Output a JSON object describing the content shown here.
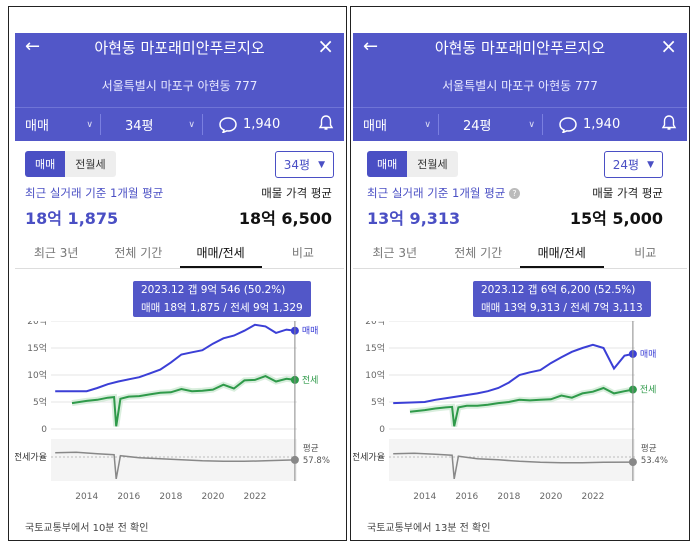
{
  "panels": [
    {
      "title": "아현동 마포래미안푸르지오",
      "address": "서울특별시 마포구 아현동 777",
      "trade_type": "매매",
      "size": "34평",
      "comment_count": "1,940",
      "segments": [
        "매매",
        "전월세"
      ],
      "size_select": "34평",
      "avg_label": "최근 실거래 기준 1개월 평균",
      "avg_value": "18억 1,875",
      "asking_label": "매물 가격 평균",
      "asking_value": "18억 6,500",
      "tabs": [
        "최근 3년",
        "전체 기간",
        "매매/전세",
        "비교"
      ],
      "tooltip_line1": "2023.12  갭 9억 546 (50.2%)",
      "tooltip_line2": "매매 18억 1,875 / 전세 9억 1,329",
      "footer": "국토교통부에서 10분 전 확인",
      "chart_data": {
        "type": "line",
        "x_ticks": [
          "2014",
          "2016",
          "2018",
          "2020",
          "2022"
        ],
        "y_ticks": [
          "20억",
          "15억",
          "10억",
          "5억",
          "0"
        ],
        "ratio_label": "전세가율",
        "ratio_avg_label": "평균",
        "ratio_avg_value": "57.8%",
        "series": [
          {
            "name": "매매",
            "color": "#3b3fd6",
            "x": [
              2012.5,
              2014.0,
              2014.5,
              2015.0,
              2015.5,
              2016.0,
              2016.5,
              2017.0,
              2017.5,
              2018.0,
              2018.5,
              2019.0,
              2019.5,
              2020.0,
              2020.5,
              2021.0,
              2021.5,
              2022.0,
              2022.5,
              2023.0,
              2023.5,
              2023.9
            ],
            "y": [
              7.0,
              7.0,
              7.6,
              8.3,
              8.8,
              9.2,
              9.6,
              10.3,
              11.0,
              12.3,
              13.8,
              14.2,
              14.6,
              15.8,
              16.8,
              17.3,
              18.2,
              19.3,
              19.0,
              17.8,
              18.4,
              18.2
            ]
          },
          {
            "name": "전세",
            "color": "#2f9a4a",
            "x": [
              2013.3,
              2014.0,
              2014.5,
              2015.0,
              2015.3,
              2015.4,
              2015.6,
              2016.0,
              2016.5,
              2017.0,
              2017.5,
              2018.0,
              2018.5,
              2019.0,
              2019.5,
              2020.0,
              2020.5,
              2021.0,
              2021.5,
              2022.0,
              2022.5,
              2023.0,
              2023.5,
              2023.9
            ],
            "y": [
              4.8,
              5.2,
              5.4,
              5.8,
              5.9,
              0.5,
              5.6,
              6.0,
              6.1,
              6.4,
              6.7,
              6.8,
              7.4,
              7.0,
              7.1,
              7.3,
              8.2,
              7.5,
              9.0,
              9.1,
              9.8,
              8.8,
              9.3,
              9.1
            ]
          },
          {
            "name": "전세가율",
            "color": "#888888",
            "x": [
              2012.5,
              2013.5,
              2014.5,
              2015.3,
              2015.4,
              2015.6,
              2016.5,
              2017.5,
              2018.5,
              2019.5,
              2020.5,
              2021.5,
              2022.5,
              2023.9
            ],
            "y": [
              72,
              73,
              70,
              68,
              20,
              66,
              62,
              60,
              58,
              56,
              55,
              55,
              56,
              57.8
            ]
          }
        ],
        "ylim": [
          0,
          20
        ],
        "xlim": [
          2012.3,
          2024.0
        ]
      }
    },
    {
      "title": "아현동 마포래미안푸르지오",
      "address": "서울특별시 마포구 아현동 777",
      "trade_type": "매매",
      "size": "24평",
      "comment_count": "1,940",
      "segments": [
        "매매",
        "전월세"
      ],
      "size_select": "24평",
      "avg_label": "최근 실거래 기준 1개월 평균",
      "avg_value": "13억 9,313",
      "asking_label": "매물 가격 평균",
      "asking_value": "15억 5,000",
      "tabs": [
        "최근 3년",
        "전체 기간",
        "매매/전세",
        "비교"
      ],
      "tooltip_line1": "2023.12  갭 6억 6,200 (52.5%)",
      "tooltip_line2": "매매 13억 9,313 / 전세 7억 3,113",
      "footer": "국토교통부에서 13분 전 확인",
      "chart_data": {
        "type": "line",
        "x_ticks": [
          "2014",
          "2016",
          "2018",
          "2020",
          "2022"
        ],
        "y_ticks": [
          "20억",
          "15억",
          "10억",
          "5억",
          "0"
        ],
        "ratio_label": "전세가율",
        "ratio_avg_label": "평균",
        "ratio_avg_value": "53.4%",
        "series": [
          {
            "name": "매매",
            "color": "#3b3fd6",
            "x": [
              2012.5,
              2014.0,
              2014.5,
              2015.0,
              2015.5,
              2016.0,
              2016.5,
              2017.0,
              2017.5,
              2018.0,
              2018.5,
              2019.0,
              2019.5,
              2020.0,
              2020.5,
              2021.0,
              2021.5,
              2022.0,
              2022.5,
              2023.0,
              2023.5,
              2023.9
            ],
            "y": [
              4.8,
              5.0,
              5.4,
              5.7,
              6.0,
              6.3,
              6.6,
              7.0,
              7.6,
              8.6,
              10.0,
              10.5,
              10.9,
              12.2,
              13.3,
              14.3,
              15.0,
              15.6,
              15.0,
              11.2,
              13.6,
              13.9
            ]
          },
          {
            "name": "전세",
            "color": "#2f9a4a",
            "x": [
              2013.3,
              2014.0,
              2014.5,
              2015.0,
              2015.3,
              2015.4,
              2015.6,
              2016.0,
              2016.5,
              2017.0,
              2017.5,
              2018.0,
              2018.5,
              2019.0,
              2019.5,
              2020.0,
              2020.5,
              2021.0,
              2021.5,
              2022.0,
              2022.5,
              2023.0,
              2023.5,
              2023.9
            ],
            "y": [
              3.2,
              3.5,
              3.8,
              4.0,
              4.1,
              0.5,
              4.0,
              4.3,
              4.3,
              4.5,
              4.8,
              5.0,
              5.4,
              5.3,
              5.4,
              5.5,
              6.2,
              5.8,
              6.6,
              6.9,
              7.6,
              6.6,
              7.0,
              7.3
            ]
          },
          {
            "name": "전세가율",
            "color": "#888888",
            "x": [
              2012.5,
              2013.5,
              2014.5,
              2015.3,
              2015.4,
              2015.6,
              2016.5,
              2017.5,
              2018.5,
              2019.5,
              2020.5,
              2021.5,
              2022.5,
              2023.9
            ],
            "y": [
              70,
              71,
              69,
              67,
              20,
              65,
              60,
              58,
              55,
              53,
              52,
              52,
              53,
              53.4
            ]
          }
        ],
        "ylim": [
          0,
          20
        ],
        "xlim": [
          2012.3,
          2024.0
        ]
      }
    }
  ]
}
